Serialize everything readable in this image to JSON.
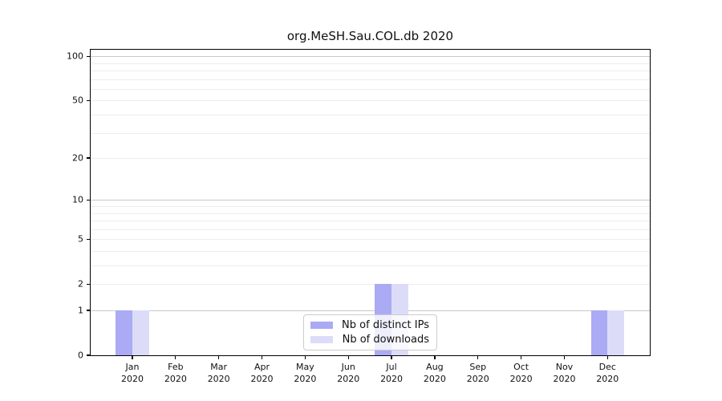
{
  "figure": {
    "title": "org.MeSH.Sau.COL.db 2020"
  },
  "chart_data": {
    "type": "bar",
    "title": "org.MeSH.Sau.COL.db 2020",
    "categories": [
      "Jan",
      "Feb",
      "Mar",
      "Apr",
      "May",
      "Jun",
      "Jul",
      "Aug",
      "Sep",
      "Oct",
      "Nov",
      "Dec"
    ],
    "category_year": "2020",
    "series": [
      {
        "name": "Nb of distinct IPs",
        "color": "#aaaaf5",
        "values": [
          1,
          0,
          0,
          0,
          0,
          0,
          2,
          0,
          0,
          0,
          0,
          1
        ]
      },
      {
        "name": "Nb of downloads",
        "color": "#dcdcf9",
        "values": [
          1,
          0,
          0,
          0,
          0,
          0,
          2,
          0,
          0,
          0,
          0,
          1
        ]
      }
    ],
    "xlabel": "",
    "ylabel": "",
    "yscale": "log1p",
    "ytick_values": [
      0,
      1,
      2,
      5,
      10,
      20,
      50,
      100
    ],
    "ytick_labels": [
      "0",
      "1",
      "2",
      "5",
      "10",
      "20",
      "50",
      "100"
    ],
    "major_grid_values": [
      1,
      10,
      100
    ],
    "minor_grid_values": [
      2,
      3,
      4,
      5,
      6,
      7,
      8,
      9,
      20,
      30,
      40,
      50,
      60,
      70,
      80,
      90
    ],
    "ylim": [
      0,
      110
    ],
    "grid": true,
    "legend_position": "lower center"
  },
  "colors": {
    "bar_distinct_ips": "#aaaaf5",
    "bar_downloads": "#dcdcf9",
    "major_grid": "#c8c8c8",
    "minor_grid": "#ececec",
    "axis": "#000000",
    "background": "#ffffff"
  }
}
